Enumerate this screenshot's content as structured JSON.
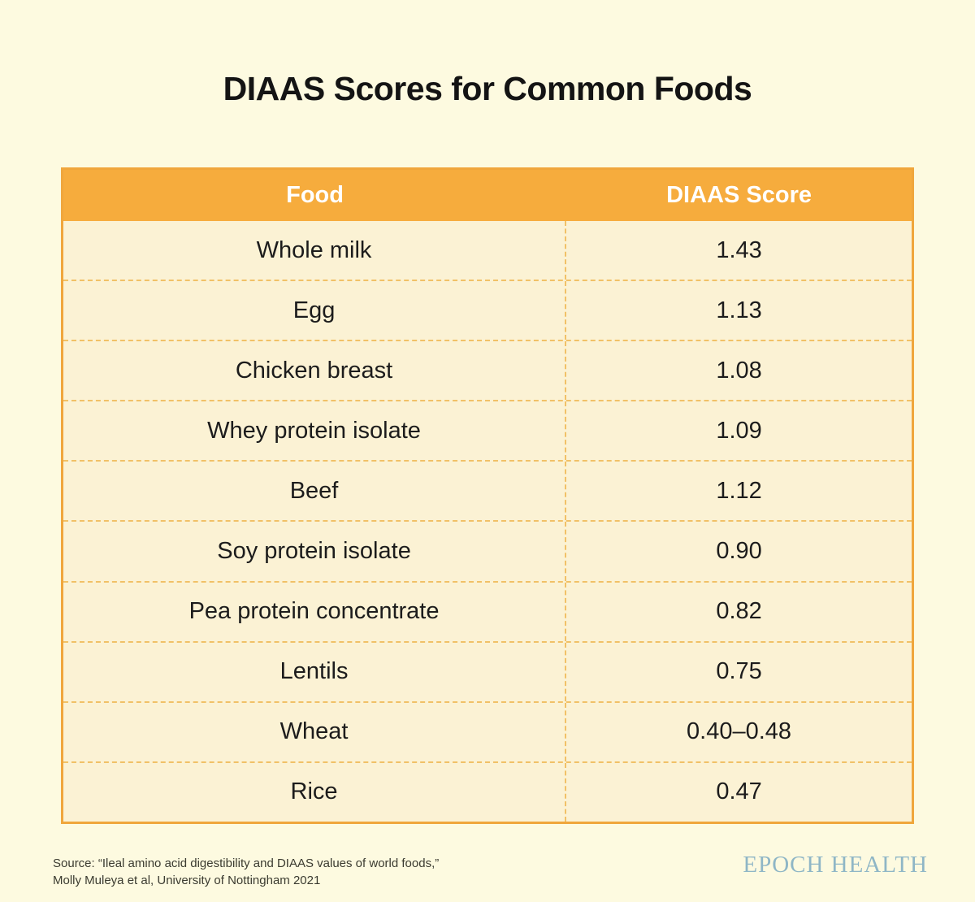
{
  "title": "DIAAS Scores for Common Foods",
  "chart_data": {
    "type": "table",
    "title": "DIAAS Scores for Common Foods",
    "columns": [
      "Food",
      "DIAAS Score"
    ],
    "rows": [
      {
        "food": "Whole milk",
        "score": "1.43"
      },
      {
        "food": "Egg",
        "score": "1.13"
      },
      {
        "food": "Chicken breast",
        "score": "1.08"
      },
      {
        "food": "Whey protein isolate",
        "score": "1.09"
      },
      {
        "food": "Beef",
        "score": "1.12"
      },
      {
        "food": "Soy protein isolate",
        "score": "0.90"
      },
      {
        "food": "Pea protein concentrate",
        "score": "0.82"
      },
      {
        "food": "Lentils",
        "score": "0.75"
      },
      {
        "food": "Wheat",
        "score": "0.40–0.48"
      },
      {
        "food": "Rice",
        "score": "0.47"
      }
    ]
  },
  "footer": {
    "source_line1": "Source: “Ileal amino acid digestibility and DIAAS values of world foods,”",
    "source_line2": "Molly Muleya et al, University of Nottingham 2021",
    "brand": "EPOCH HEALTH"
  },
  "colors": {
    "background": "#FDFAE0",
    "table_background": "#FBF2D4",
    "header_orange": "#F6AC3D",
    "border_orange": "#F0A63C",
    "dash_orange": "#F1C167",
    "text": "#1C1C1C",
    "header_text": "#FFFFFF",
    "brand_blue": "#8FB6C6"
  }
}
